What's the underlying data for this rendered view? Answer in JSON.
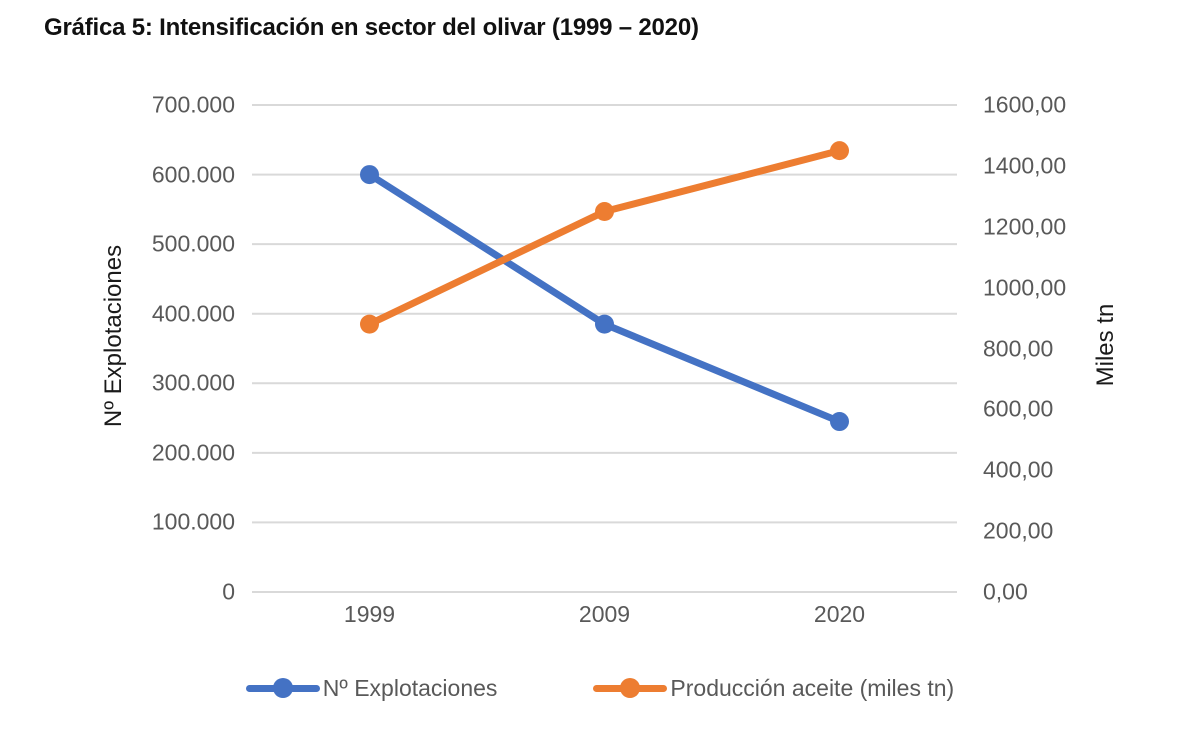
{
  "title": "Gráfica 5: Intensificación en sector del olivar (1999 – 2020)",
  "chart_data": {
    "type": "line",
    "title": "Gráfica 5: Intensificación en sector del olivar (1999 – 2020)",
    "categories": [
      "1999",
      "2009",
      "2020"
    ],
    "series": [
      {
        "name": "Nº Explotaciones",
        "axis": "left",
        "color": "#4472C4",
        "marker": "circle",
        "values": [
          600000,
          385000,
          245000
        ]
      },
      {
        "name": "Producción aceite (miles tn)",
        "axis": "right",
        "color": "#ED7D31",
        "marker": "circle",
        "values": [
          880,
          1250,
          1450
        ]
      }
    ],
    "left_axis": {
      "label": "Nº Explotaciones",
      "min": 0,
      "max": 700000,
      "ticks": [
        "700.000",
        "600.000",
        "500.000",
        "400.000",
        "300.000",
        "200.000",
        "100.000",
        "0"
      ]
    },
    "right_axis": {
      "label": "Miles tn",
      "min": 0,
      "max": 1600,
      "ticks": [
        "1600,00",
        "1400,00",
        "1200,00",
        "1000,00",
        "800,00",
        "600,00",
        "400,00",
        "200,00",
        "0,00"
      ]
    },
    "grid": true,
    "gridline_color": "#D9D9D9",
    "tick_label_color": "#595959",
    "legend_position": "bottom"
  }
}
